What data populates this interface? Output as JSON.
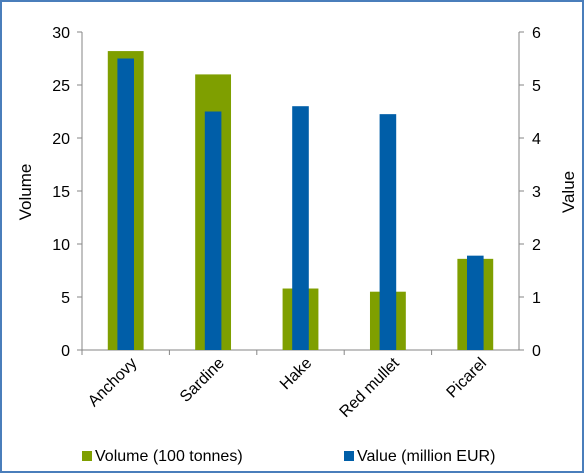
{
  "chart_data": {
    "type": "bar",
    "categories": [
      "Anchovy",
      "Sardine",
      "Hake",
      "Red mullet",
      "Picarel"
    ],
    "series": [
      {
        "name": "Volume (100 tonnes)",
        "axis": "left",
        "color": "#7f9f00",
        "values": [
          28.2,
          26.0,
          5.8,
          5.5,
          8.6
        ]
      },
      {
        "name": "Value (million EUR)",
        "axis": "right",
        "color": "#005ea8",
        "values": [
          5.5,
          4.5,
          4.6,
          4.45,
          1.78
        ]
      }
    ],
    "ylabel": "Volume",
    "y2label": "Value",
    "ylim": [
      0,
      30
    ],
    "y2lim": [
      0,
      6
    ],
    "yticks": [
      "0",
      "5",
      "10",
      "15",
      "20",
      "25",
      "30"
    ],
    "y2ticks": [
      "0",
      "1",
      "2",
      "3",
      "4",
      "5",
      "6"
    ],
    "grid": false,
    "legend_position": "bottom"
  }
}
